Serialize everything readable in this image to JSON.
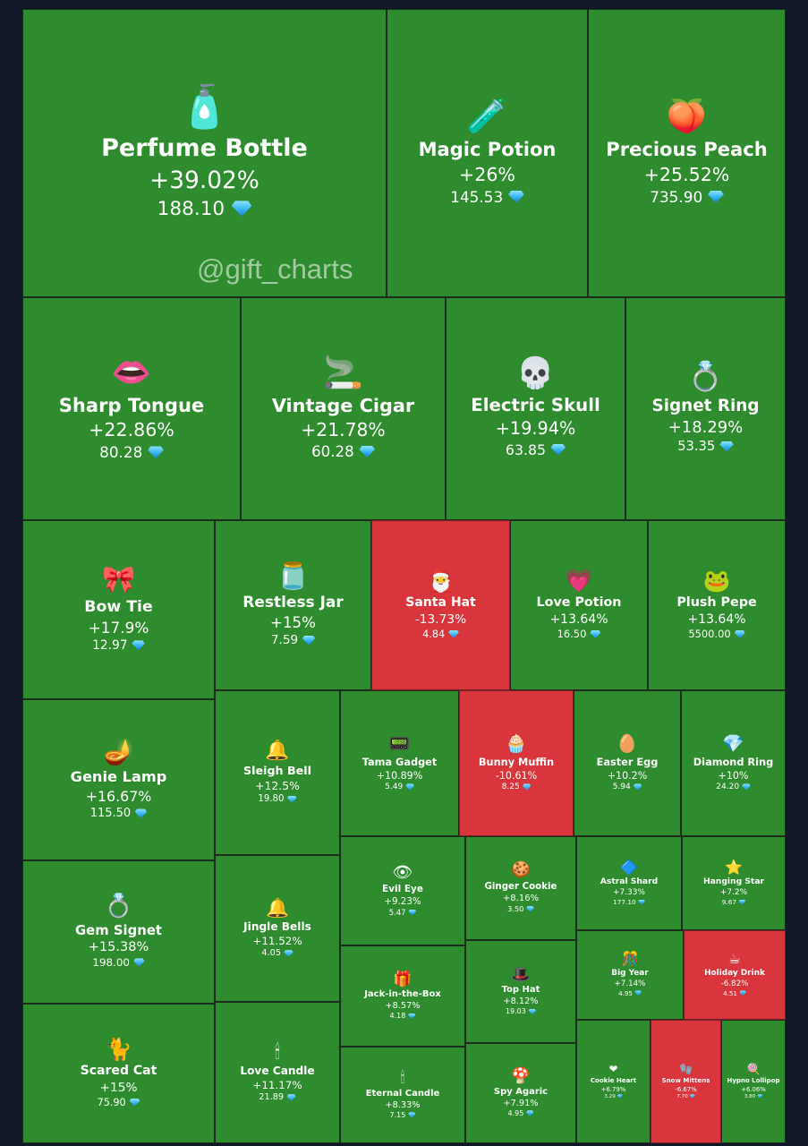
{
  "watermark": "@gift_charts",
  "colors": {
    "gain": "#2e8b2e",
    "loss": "#d8363c",
    "border": "#1d2b1d",
    "diamond": "#36b4f0"
  },
  "chart_data": {
    "type": "treemap",
    "value_icon": "diamond-icon",
    "items": [
      {
        "name": "Perfume Bottle",
        "change": "+39.02%",
        "price": "188.10",
        "icon": "perfume-bottle-icon",
        "glyph": "🧴"
      },
      {
        "name": "Magic Potion",
        "change": "+26%",
        "price": "145.53",
        "icon": "magic-potion-icon",
        "glyph": "🧪"
      },
      {
        "name": "Precious Peach",
        "change": "+25.52%",
        "price": "735.90",
        "icon": "precious-peach-icon",
        "glyph": "🍑"
      },
      {
        "name": "Sharp Tongue",
        "change": "+22.86%",
        "price": "80.28",
        "icon": "sharp-tongue-icon",
        "glyph": "👄"
      },
      {
        "name": "Vintage Cigar",
        "change": "+21.78%",
        "price": "60.28",
        "icon": "vintage-cigar-icon",
        "glyph": "🚬"
      },
      {
        "name": "Electric Skull",
        "change": "+19.94%",
        "price": "63.85",
        "icon": "electric-skull-icon",
        "glyph": "💀"
      },
      {
        "name": "Signet Ring",
        "change": "+18.29%",
        "price": "53.35",
        "icon": "signet-ring-icon",
        "glyph": "💍"
      },
      {
        "name": "Bow Tie",
        "change": "+17.9%",
        "price": "12.97",
        "icon": "bow-tie-icon",
        "glyph": "🎀"
      },
      {
        "name": "Restless Jar",
        "change": "+15%",
        "price": "7.59",
        "icon": "restless-jar-icon",
        "glyph": "🫙"
      },
      {
        "name": "Santa Hat",
        "change": "-13.73%",
        "price": "4.84",
        "icon": "santa-hat-icon",
        "glyph": "🎅"
      },
      {
        "name": "Love Potion",
        "change": "+13.64%",
        "price": "16.50",
        "icon": "love-potion-icon",
        "glyph": "💗"
      },
      {
        "name": "Plush Pepe",
        "change": "+13.64%",
        "price": "5500.00",
        "icon": "plush-pepe-icon",
        "glyph": "🐸"
      },
      {
        "name": "Genie Lamp",
        "change": "+16.67%",
        "price": "115.50",
        "icon": "genie-lamp-icon",
        "glyph": "🪔"
      },
      {
        "name": "Sleigh Bell",
        "change": "+12.5%",
        "price": "19.80",
        "icon": "sleigh-bell-icon",
        "glyph": "🔔"
      },
      {
        "name": "Tama Gadget",
        "change": "+10.89%",
        "price": "5.49",
        "icon": "tama-gadget-icon",
        "glyph": "📟"
      },
      {
        "name": "Bunny Muffin",
        "change": "-10.61%",
        "price": "8.25",
        "icon": "bunny-muffin-icon",
        "glyph": "🧁"
      },
      {
        "name": "Easter Egg",
        "change": "+10.2%",
        "price": "5.94",
        "icon": "easter-egg-icon",
        "glyph": "🥚"
      },
      {
        "name": "Diamond Ring",
        "change": "+10%",
        "price": "24.20",
        "icon": "diamond-ring-icon",
        "glyph": "💎"
      },
      {
        "name": "Gem Signet",
        "change": "+15.38%",
        "price": "198.00",
        "icon": "gem-signet-icon",
        "glyph": "💍"
      },
      {
        "name": "Jingle Bells",
        "change": "+11.52%",
        "price": "4.05",
        "icon": "jingle-bells-icon",
        "glyph": "🔔"
      },
      {
        "name": "Evil Eye",
        "change": "+9.23%",
        "price": "5.47",
        "icon": "evil-eye-icon",
        "glyph": "👁"
      },
      {
        "name": "Ginger Cookie",
        "change": "+8.16%",
        "price": "3.50",
        "icon": "ginger-cookie-icon",
        "glyph": "🍪"
      },
      {
        "name": "Astral Shard",
        "change": "+7.33%",
        "price": "177.10",
        "icon": "astral-shard-icon",
        "glyph": "🔷"
      },
      {
        "name": "Hanging Star",
        "change": "+7.2%",
        "price": "9.67",
        "icon": "hanging-star-icon",
        "glyph": "⭐"
      },
      {
        "name": "Jack-in-the-Box",
        "change": "+8.57%",
        "price": "4.18",
        "icon": "jack-in-the-box-icon",
        "glyph": "🎁"
      },
      {
        "name": "Top Hat",
        "change": "+8.12%",
        "price": "19.03",
        "icon": "top-hat-icon",
        "glyph": "🎩"
      },
      {
        "name": "Big Year",
        "change": "+7.14%",
        "price": "4.95",
        "icon": "big-year-icon",
        "glyph": "🎊"
      },
      {
        "name": "Holiday Drink",
        "change": "-6.82%",
        "price": "4.51",
        "icon": "holiday-drink-icon",
        "glyph": "☕"
      },
      {
        "name": "Scared Cat",
        "change": "+15%",
        "price": "75.90",
        "icon": "scared-cat-icon",
        "glyph": "🐈"
      },
      {
        "name": "Love Candle",
        "change": "+11.17%",
        "price": "21.89",
        "icon": "love-candle-icon",
        "glyph": "🕯"
      },
      {
        "name": "Eternal Candle",
        "change": "+8.33%",
        "price": "7.15",
        "icon": "eternal-candle-icon",
        "glyph": "🕯"
      },
      {
        "name": "Spy Agaric",
        "change": "+7.91%",
        "price": "4.95",
        "icon": "spy-agaric-icon",
        "glyph": "🍄"
      },
      {
        "name": "Cookie Heart",
        "change": "+6.79%",
        "price": "3.29",
        "icon": "cookie-heart-icon",
        "glyph": "❤"
      },
      {
        "name": "Snow Mittens",
        "change": "-6.67%",
        "price": "7.70",
        "icon": "snow-mittens-icon",
        "glyph": "🧤"
      },
      {
        "name": "Hypno Lollipop",
        "change": "+6.06%",
        "price": "3.80",
        "icon": "hypno-lollipop-icon",
        "glyph": "🍭"
      }
    ]
  }
}
